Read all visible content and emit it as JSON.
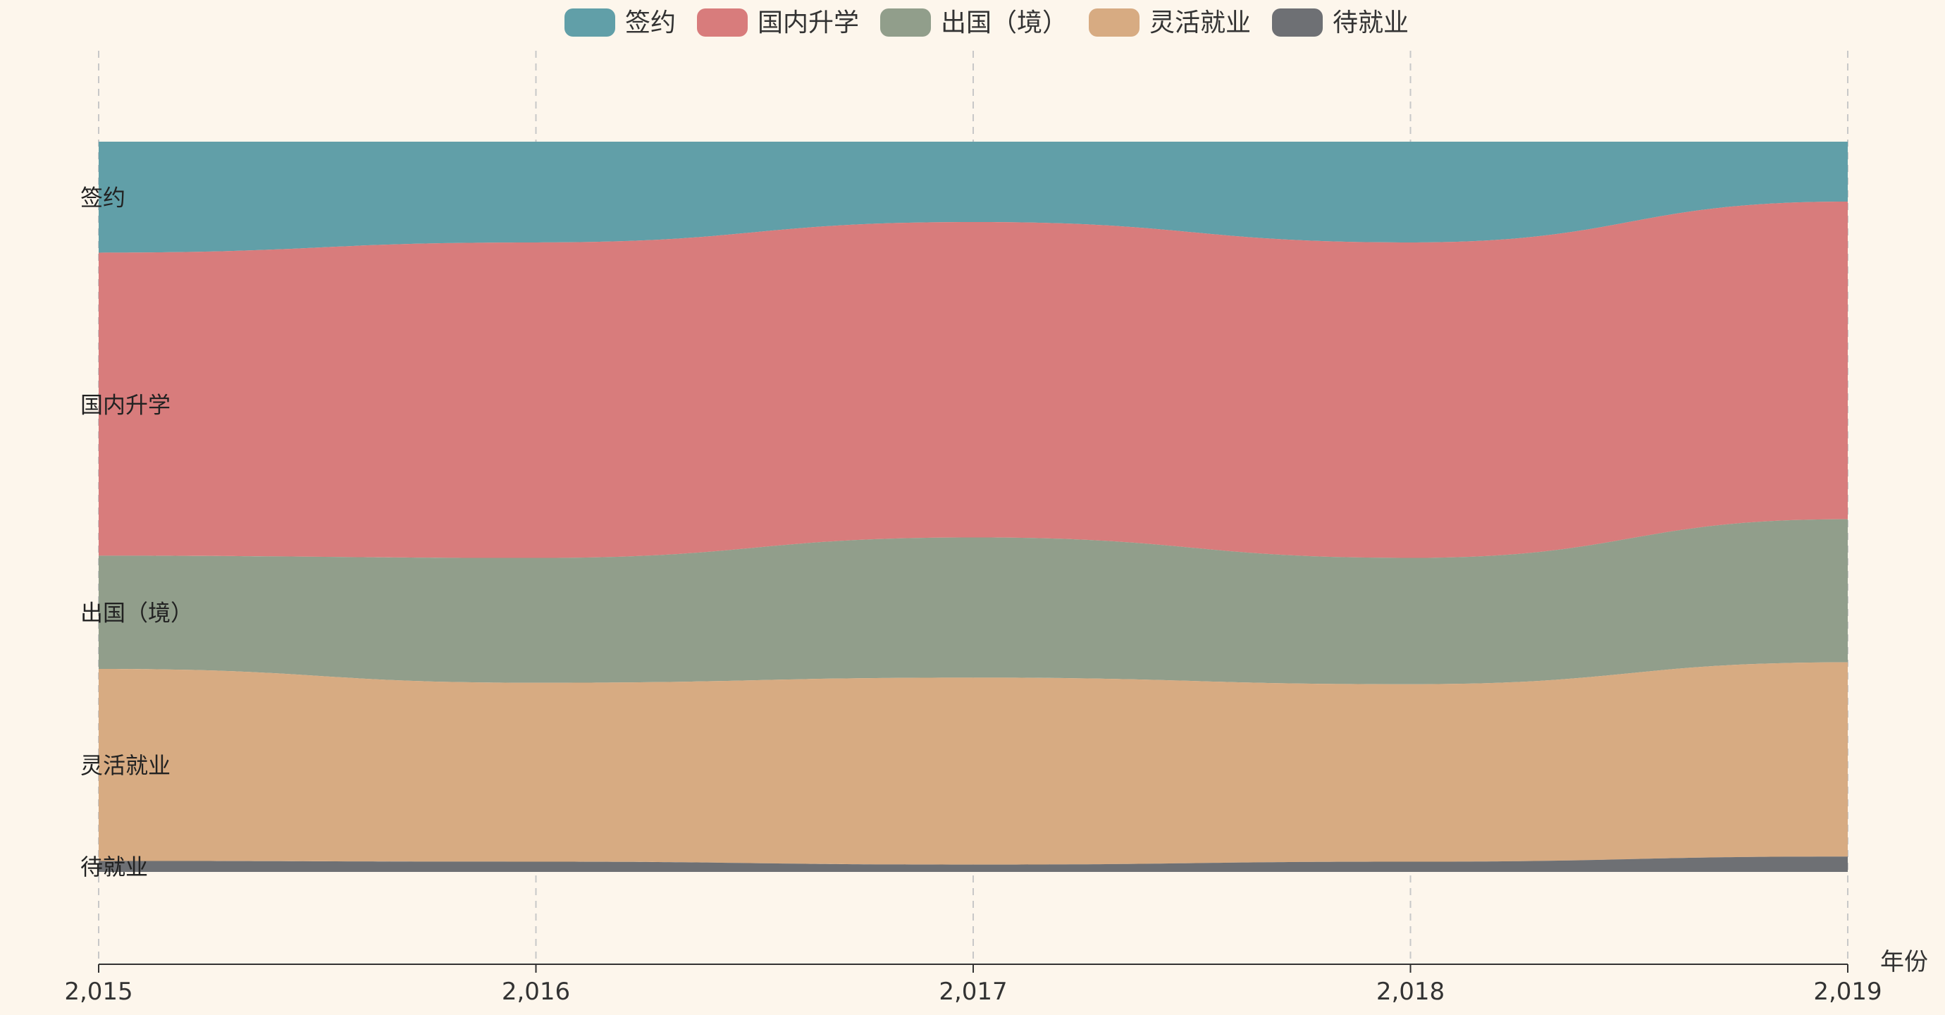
{
  "chart_data": {
    "type": "area",
    "stacked": true,
    "normalized": true,
    "smooth": true,
    "x": [
      "2,015",
      "2,016",
      "2,017",
      "2,018",
      "2,019"
    ],
    "xlabel": "年份",
    "ylabel": "",
    "grid": {
      "vertical": true,
      "horizontal": false,
      "style": "dashed"
    },
    "legend": {
      "placement": "top-center"
    },
    "series": [
      {
        "name": "签约",
        "color": "#619fa8",
        "values": [
          15.2,
          13.8,
          11.0,
          13.8,
          8.2
        ]
      },
      {
        "name": "国内升学",
        "color": "#d87c7c",
        "values": [
          41.5,
          43.2,
          43.2,
          43.2,
          43.5
        ]
      },
      {
        "name": "出国（境）",
        "color": "#919e8b",
        "values": [
          15.5,
          17.1,
          19.2,
          17.3,
          19.6
        ]
      },
      {
        "name": "灵活就业",
        "color": "#d7ab82",
        "values": [
          26.3,
          24.5,
          25.6,
          24.3,
          26.6
        ]
      },
      {
        "name": "待就业",
        "color": "#6e7074",
        "values": [
          1.5,
          1.4,
          1.0,
          1.4,
          2.1
        ]
      }
    ]
  }
}
